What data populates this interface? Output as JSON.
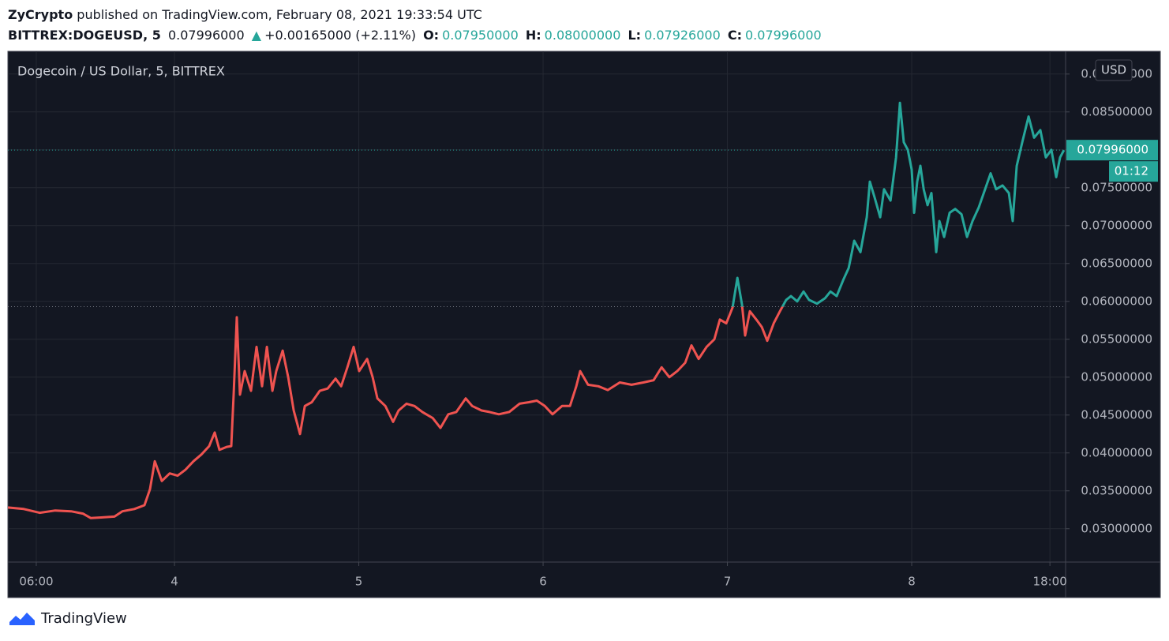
{
  "header": {
    "author": "ZyCrypto",
    "published": "published on TradingView.com, February 08, 2021 19:33:54 UTC",
    "symbol": "BITTREX:DOGEUSD, 5",
    "last": "0.07996000",
    "arrow": "▲",
    "change": "+0.00165000 (+2.11%)",
    "open_label": "O:",
    "open": "0.07950000",
    "high_label": "H:",
    "high": "0.08000000",
    "low_label": "L:",
    "low": "0.07926000",
    "close_label": "C:",
    "close": "0.07996000"
  },
  "footer": {
    "brand": "TradingView"
  },
  "chart_data": {
    "type": "line",
    "title": "Dogecoin / US Dollar, 5, BITTREX",
    "y_unit": "USD",
    "up_color": "#26a69a",
    "down_color": "#ef5350",
    "baseline": 0.0593,
    "last_price": {
      "value": 0.07996,
      "label": "0.07996000"
    },
    "countdown": "01:12",
    "grid": true,
    "xlim": [
      3.096,
      8.835
    ],
    "xticks": [
      {
        "value": 3.25,
        "label": "06:00"
      },
      4,
      5,
      6,
      7,
      8,
      {
        "value": 8.75,
        "label": "18:00"
      }
    ],
    "ylim": [
      0.0256,
      0.093
    ],
    "yticks": [
      {
        "value": 0.03,
        "label": "0.03000000"
      },
      {
        "value": 0.035,
        "label": "0.03500000"
      },
      {
        "value": 0.04,
        "label": "0.04000000"
      },
      {
        "value": 0.045,
        "label": "0.04500000"
      },
      {
        "value": 0.05,
        "label": "0.05000000"
      },
      {
        "value": 0.055,
        "label": "0.05500000"
      },
      {
        "value": 0.06,
        "label": "0.06000000"
      },
      {
        "value": 0.065,
        "label": "0.06500000"
      },
      {
        "value": 0.07,
        "label": "0.07000000"
      },
      {
        "value": 0.075,
        "label": "0.07500000"
      },
      {
        "value": 0.08,
        "label": "0.08000000"
      },
      {
        "value": 0.085,
        "label": "0.08500000"
      },
      {
        "value": 0.09,
        "label": "0.09000000"
      }
    ],
    "x": [
      3.096,
      3.182,
      3.268,
      3.353,
      3.439,
      3.503,
      3.546,
      3.61,
      3.674,
      3.717,
      3.782,
      3.837,
      3.867,
      3.893,
      3.931,
      3.974,
      4.017,
      4.06,
      4.103,
      4.146,
      4.188,
      4.218,
      4.244,
      4.283,
      4.308,
      4.321,
      4.338,
      4.355,
      4.381,
      4.415,
      4.445,
      4.475,
      4.501,
      4.531,
      4.552,
      4.587,
      4.617,
      4.647,
      4.681,
      4.707,
      4.745,
      4.788,
      4.831,
      4.874,
      4.904,
      4.938,
      4.972,
      5.002,
      5.045,
      5.075,
      5.101,
      5.144,
      5.186,
      5.216,
      5.259,
      5.302,
      5.345,
      5.401,
      5.443,
      5.486,
      5.529,
      5.58,
      5.615,
      5.666,
      5.709,
      5.76,
      5.816,
      5.872,
      5.923,
      5.966,
      6.009,
      6.051,
      6.103,
      6.146,
      6.18,
      6.201,
      6.244,
      6.3,
      6.351,
      6.416,
      6.48,
      6.544,
      6.6,
      6.643,
      6.685,
      6.728,
      6.771,
      6.805,
      6.844,
      6.887,
      6.929,
      6.959,
      6.994,
      7.028,
      7.054,
      7.079,
      7.096,
      7.122,
      7.157,
      7.187,
      7.216,
      7.251,
      7.285,
      7.319,
      7.345,
      7.379,
      7.413,
      7.443,
      7.486,
      7.529,
      7.559,
      7.593,
      7.628,
      7.658,
      7.688,
      7.722,
      7.756,
      7.773,
      7.799,
      7.829,
      7.85,
      7.885,
      7.915,
      7.936,
      7.957,
      7.979,
      8.0,
      8.013,
      8.03,
      8.047,
      8.065,
      8.086,
      8.107,
      8.133,
      8.15,
      8.176,
      8.206,
      8.236,
      8.27,
      8.3,
      8.33,
      8.364,
      8.398,
      8.428,
      8.458,
      8.493,
      8.527,
      8.548,
      8.57,
      8.6,
      8.634,
      8.664,
      8.698,
      8.728,
      8.758,
      8.784,
      8.805,
      8.826
    ],
    "values": [
      0.0328,
      0.0326,
      0.0321,
      0.0324,
      0.0323,
      0.032,
      0.0314,
      0.0315,
      0.0316,
      0.0323,
      0.0326,
      0.0331,
      0.0352,
      0.0389,
      0.0363,
      0.0373,
      0.037,
      0.0378,
      0.0389,
      0.0398,
      0.0409,
      0.0427,
      0.0404,
      0.0408,
      0.0409,
      0.0477,
      0.0579,
      0.0477,
      0.0508,
      0.0482,
      0.054,
      0.0488,
      0.054,
      0.0482,
      0.0508,
      0.0535,
      0.05,
      0.0456,
      0.0425,
      0.0462,
      0.0467,
      0.0482,
      0.0485,
      0.0498,
      0.0488,
      0.0513,
      0.054,
      0.0508,
      0.0524,
      0.05,
      0.0472,
      0.0462,
      0.0441,
      0.0456,
      0.0465,
      0.0462,
      0.0454,
      0.0446,
      0.0433,
      0.0451,
      0.0454,
      0.0472,
      0.0462,
      0.0456,
      0.0454,
      0.0451,
      0.0454,
      0.0465,
      0.0467,
      0.0469,
      0.0462,
      0.0451,
      0.0462,
      0.0462,
      0.0488,
      0.0508,
      0.049,
      0.0488,
      0.0483,
      0.0493,
      0.049,
      0.0493,
      0.0496,
      0.0513,
      0.05,
      0.0508,
      0.0519,
      0.0542,
      0.0524,
      0.054,
      0.055,
      0.0576,
      0.0571,
      0.0592,
      0.0631,
      0.0596,
      0.0555,
      0.0587,
      0.0576,
      0.0566,
      0.0548,
      0.0571,
      0.0587,
      0.0602,
      0.0607,
      0.06,
      0.0613,
      0.0602,
      0.0597,
      0.0604,
      0.0613,
      0.0607,
      0.0628,
      0.0644,
      0.068,
      0.0665,
      0.0711,
      0.0758,
      0.0737,
      0.0711,
      0.0748,
      0.0733,
      0.079,
      0.0862,
      0.081,
      0.08,
      0.0774,
      0.0717,
      0.0758,
      0.0779,
      0.0748,
      0.0727,
      0.0743,
      0.0665,
      0.0706,
      0.0685,
      0.0717,
      0.0722,
      0.0715,
      0.0685,
      0.0706,
      0.0724,
      0.0748,
      0.0769,
      0.0748,
      0.0753,
      0.0743,
      0.0706,
      0.0779,
      0.081,
      0.0844,
      0.0816,
      0.0826,
      0.079,
      0.08,
      0.0764,
      0.079,
      0.07996
    ]
  }
}
